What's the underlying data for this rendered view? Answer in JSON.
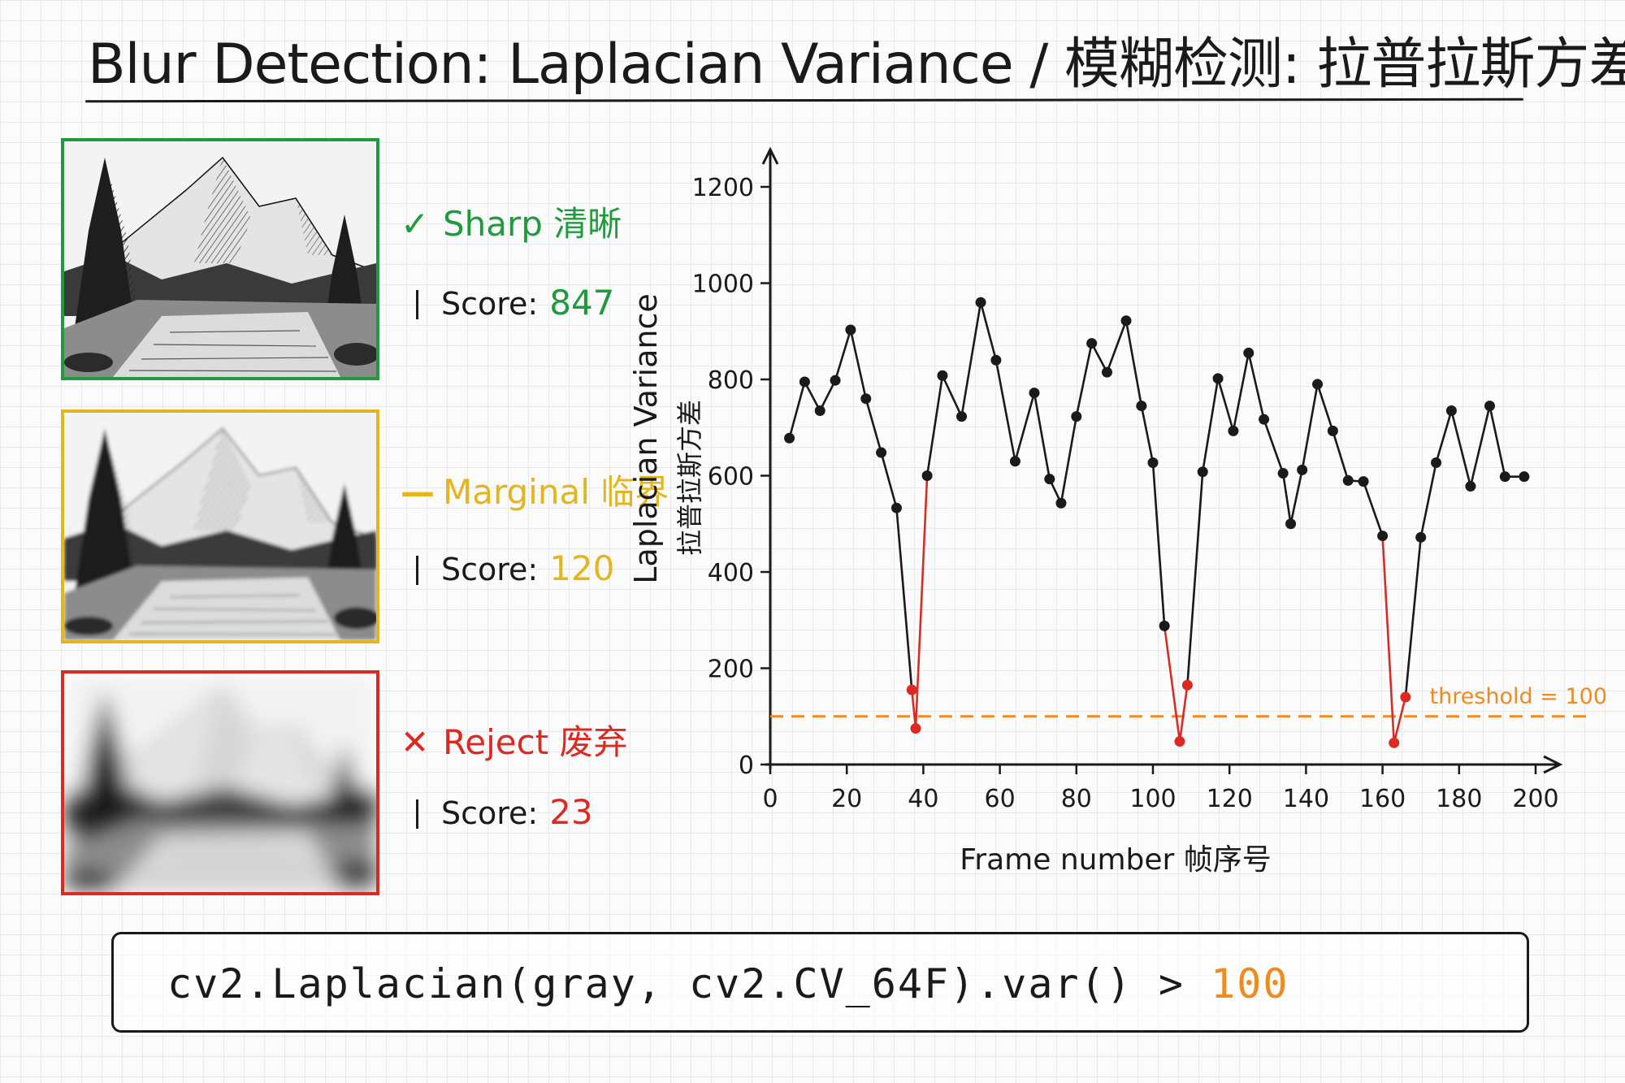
{
  "title": "Blur Detection: Laplacian Variance / 模糊检测: 拉普拉斯方差",
  "colors": {
    "sharp": "#1f9a3c",
    "marginal": "#e3b51e",
    "reject": "#dc2a22",
    "threshold": "#ef8a1e",
    "ink": "#1a1a1a"
  },
  "examples": [
    {
      "status_icon": "check-icon",
      "mark": "✓",
      "status": "Sharp 清晰",
      "score_label": "Score:",
      "score": "847"
    },
    {
      "status_icon": "dash-icon",
      "mark": "—",
      "status": "Marginal 临界",
      "score_label": "Score:",
      "score": "120"
    },
    {
      "status_icon": "cross-icon",
      "mark": "✕",
      "status": "Reject 废弃",
      "score_label": "Score:",
      "score": "23"
    }
  ],
  "chart_data": {
    "type": "line",
    "xlabel": "Frame number 帧序号",
    "ylabel": "Laplacian Variance",
    "ylabel2": "拉普拉斯方差",
    "xlim": [
      0,
      200
    ],
    "ylim": [
      0,
      1200
    ],
    "xticks": [
      "0",
      "20",
      "40",
      "60",
      "80",
      "100",
      "120",
      "140",
      "160",
      "180",
      "200"
    ],
    "yticks": [
      "0",
      "200",
      "400",
      "600",
      "800",
      "1000",
      "1200"
    ],
    "grid": false,
    "threshold": {
      "value": 100,
      "label": "threshold = 100"
    },
    "series": [
      {
        "x": [
          5,
          9,
          13,
          17,
          21,
          25,
          29,
          33,
          37,
          38,
          41,
          45,
          50,
          55,
          59,
          64,
          69,
          73,
          76,
          80,
          84,
          88,
          93,
          97,
          100,
          103,
          107,
          109,
          113,
          117,
          121,
          125,
          129,
          134,
          136,
          139,
          143,
          147,
          151,
          155,
          160,
          163,
          166,
          170,
          174,
          178,
          183,
          188,
          192,
          197
        ],
        "y": [
          678,
          795,
          735,
          798,
          903,
          760,
          648,
          533,
          155,
          75,
          600,
          808,
          723,
          960,
          840,
          630,
          772,
          593,
          543,
          723,
          875,
          815,
          922,
          745,
          627,
          288,
          48,
          165,
          608,
          802,
          693,
          855,
          717,
          605,
          500,
          612,
          790,
          693,
          590,
          588,
          475,
          45,
          140,
          472,
          627,
          735,
          578,
          745,
          598,
          598
        ]
      }
    ]
  },
  "code": {
    "text": "cv2.Laplacian(gray, cv2.CV_64F).var() > ",
    "threshold": "100"
  }
}
